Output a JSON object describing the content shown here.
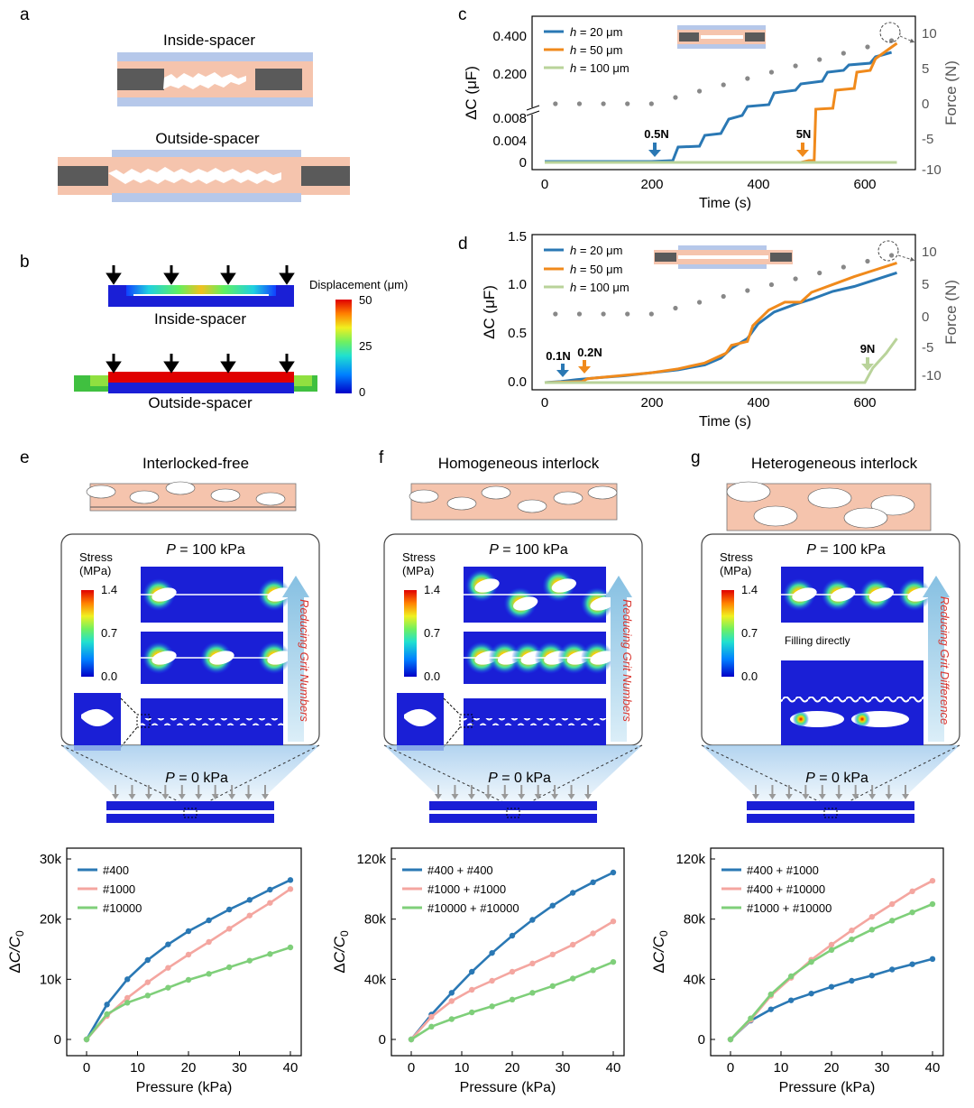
{
  "colors": {
    "blue": "#2a78b4",
    "orange": "#f08a1c",
    "lightgreen": "#b9d39a",
    "pink": "#f4a6a0",
    "green": "#7fcf7a",
    "skin": "#f5c4ad",
    "spacer_blue": "#b6c8ea",
    "gray_block": "#5a5a5a",
    "deep_blue": "#1a1fd6",
    "arrow_light": "#a6cfe6",
    "reduce_text": "#d8342e",
    "dot_gray": "#888888"
  },
  "panel_a": {
    "letter": "a",
    "inside_label": "Inside-spacer",
    "outside_label": "Outside-spacer"
  },
  "panel_b": {
    "letter": "b",
    "inside_label": "Inside-spacer",
    "outside_label": "Outside-spacer",
    "colorbar_title": "Displacement (μm)",
    "colorbar_ticks": [
      "50",
      "25",
      "0"
    ]
  },
  "chart_data": [
    {
      "id": "c",
      "type": "line",
      "xlabel": "Time (s)",
      "ylabel": "ΔC (μF)",
      "y2label": "Force (N)",
      "xticks": [
        "0",
        "200",
        "400",
        "600"
      ],
      "yticks_upper": [
        "0.400",
        "0.200"
      ],
      "yticks_lower": [
        "0.008",
        "0.004",
        "0"
      ],
      "y2ticks": [
        "10",
        "5",
        "0",
        "-5",
        "-10"
      ],
      "xlim": [
        0,
        660
      ],
      "series": [
        {
          "name": "h = 20 μm",
          "prefix": "h",
          "suffix": " = 20 μm",
          "color": "#2a78b4"
        },
        {
          "name": "h = 50 μm",
          "prefix": "h",
          "suffix": " = 50 μm",
          "color": "#f08a1c"
        },
        {
          "name": "h = 100 μm",
          "prefix": "h",
          "suffix": " = 100 μm",
          "color": "#b9d39a"
        }
      ],
      "annotations": [
        "0.5N",
        "5N"
      ]
    },
    {
      "id": "d",
      "type": "line",
      "xlabel": "Time (s)",
      "ylabel": "ΔC (μF)",
      "y2label": "Force (N)",
      "xticks": [
        "0",
        "200",
        "400",
        "600"
      ],
      "yticks": [
        "1.5",
        "1.0",
        "0.5",
        "0.0"
      ],
      "y2ticks": [
        "10",
        "5",
        "0",
        "-5",
        "-10"
      ],
      "xlim": [
        0,
        660
      ],
      "ylim": [
        0,
        1.5
      ],
      "series": [
        {
          "name": "h = 20 μm",
          "prefix": "h",
          "suffix": " = 20 μm",
          "color": "#2a78b4"
        },
        {
          "name": "h = 50 μm",
          "prefix": "h",
          "suffix": " = 50 μm",
          "color": "#f08a1c"
        },
        {
          "name": "h = 100 μm",
          "prefix": "h",
          "suffix": " = 100 μm",
          "color": "#b9d39a"
        }
      ],
      "annotations": [
        "0.1N",
        "0.2N",
        "9N"
      ]
    },
    {
      "id": "e",
      "type": "line",
      "xlabel": "Pressure (kPa)",
      "ylabel": "ΔC/C0",
      "x": [
        0,
        4,
        8,
        12,
        16,
        20,
        24,
        28,
        32,
        36,
        40
      ],
      "xticks": [
        "0",
        "10",
        "20",
        "30",
        "40"
      ],
      "yticks": [
        "0",
        "10k",
        "20k",
        "30k"
      ],
      "xlim": [
        0,
        40
      ],
      "ylim": [
        0,
        30000
      ],
      "series": [
        {
          "name": "#400",
          "color": "#2a78b4",
          "values": [
            0,
            5800,
            10000,
            13200,
            15800,
            18000,
            19800,
            21600,
            23200,
            24900,
            26500
          ]
        },
        {
          "name": "#1000",
          "color": "#f4a6a0",
          "values": [
            0,
            3900,
            6900,
            9500,
            11900,
            14100,
            16200,
            18400,
            20600,
            22700,
            25000
          ]
        },
        {
          "name": "#10000",
          "color": "#7fcf7a",
          "values": [
            0,
            4200,
            6100,
            7300,
            8600,
            9900,
            10900,
            12000,
            13100,
            14200,
            15300
          ]
        }
      ]
    },
    {
      "id": "f",
      "type": "line",
      "xlabel": "Pressure (kPa)",
      "ylabel": "ΔC/C0",
      "x": [
        0,
        4,
        8,
        12,
        16,
        20,
        24,
        28,
        32,
        36,
        40
      ],
      "xticks": [
        "0",
        "10",
        "20",
        "30",
        "40"
      ],
      "yticks": [
        "0",
        "40k",
        "80k",
        "120k"
      ],
      "xlim": [
        0,
        40
      ],
      "ylim": [
        0,
        120000
      ],
      "series": [
        {
          "name": "#400 + #400",
          "color": "#2a78b4",
          "values": [
            0,
            16500,
            31000,
            45000,
            57500,
            69000,
            79500,
            89000,
            97500,
            104500,
            111000
          ]
        },
        {
          "name": "#1000 + #1000",
          "color": "#f4a6a0",
          "values": [
            0,
            15000,
            25500,
            33000,
            39000,
            45000,
            50500,
            56500,
            63000,
            70500,
            78500
          ]
        },
        {
          "name": "#10000 + #10000",
          "color": "#7fcf7a",
          "values": [
            0,
            8500,
            13500,
            18000,
            22000,
            26500,
            31000,
            35500,
            40500,
            46000,
            51500
          ]
        }
      ]
    },
    {
      "id": "g",
      "type": "line",
      "xlabel": "Pressure (kPa)",
      "ylabel": "ΔC/C0",
      "x": [
        0,
        4,
        8,
        12,
        16,
        20,
        24,
        28,
        32,
        36,
        40
      ],
      "xticks": [
        "0",
        "10",
        "20",
        "30",
        "40"
      ],
      "yticks": [
        "0",
        "40k",
        "80k",
        "120k"
      ],
      "xlim": [
        0,
        40
      ],
      "ylim": [
        0,
        120000
      ],
      "series": [
        {
          "name": "#400 + #1000",
          "color": "#2a78b4",
          "values": [
            0,
            12500,
            20000,
            26000,
            30500,
            35000,
            39000,
            42500,
            46500,
            50000,
            53500
          ]
        },
        {
          "name": "#400 + #10000",
          "color": "#f4a6a0",
          "values": [
            0,
            13000,
            29000,
            41000,
            53000,
            63000,
            72500,
            81500,
            90000,
            98500,
            105500
          ]
        },
        {
          "name": "#1000 + #10000",
          "color": "#7fcf7a",
          "values": [
            0,
            14000,
            30000,
            42000,
            51500,
            59500,
            66500,
            73000,
            79000,
            84500,
            90000
          ]
        }
      ]
    }
  ],
  "panels_efg": [
    {
      "letter": "e",
      "title": "Interlocked-free",
      "pressure_top": "P = 100 kPa",
      "p_prefix": "P",
      "p_suffix_top": " = 100 kPa",
      "p_suffix_bottom": " = 0 kPa",
      "stress_title_1": "Stress",
      "stress_title_2": "(MPa)",
      "stress_ticks": [
        "1.4",
        "0.7",
        "0.0"
      ],
      "side_text": "Reducing Grit Numbers"
    },
    {
      "letter": "f",
      "title": "Homogeneous interlock",
      "pressure_top": "P = 100 kPa",
      "p_prefix": "P",
      "p_suffix_top": " = 100 kPa",
      "p_suffix_bottom": " = 0 kPa",
      "stress_title_1": "Stress",
      "stress_title_2": "(MPa)",
      "stress_ticks": [
        "1.4",
        "0.7",
        "0.0"
      ],
      "side_text": "Reducing Grit Numbers"
    },
    {
      "letter": "g",
      "title": "Heterogeneous interlock",
      "pressure_top": "P = 100 kPa",
      "p_prefix": "P",
      "p_suffix_top": " = 100 kPa",
      "p_suffix_bottom": " = 0 kPa",
      "stress_title_1": "Stress",
      "stress_title_2": "(MPa)",
      "stress_ticks": [
        "1.4",
        "0.7",
        "0.0"
      ],
      "side_text": "Reducing Grit Difference",
      "extra_label": "Filling directly"
    }
  ]
}
